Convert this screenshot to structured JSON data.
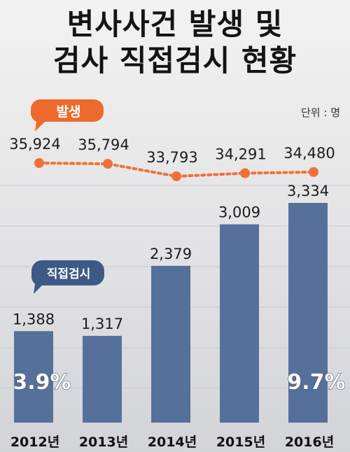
{
  "title_line1": "변사사건 발생 및",
  "title_line2": "검사 직접검시 현황",
  "unit": "단위 : 명",
  "legend": {
    "occurrence": "발생",
    "inspection": "직접검시"
  },
  "colors": {
    "bar": "#56709c",
    "line": "#f0703a",
    "legend_occurrence": "#ec6a2c",
    "legend_inspection": "#3d5a86"
  },
  "chart_data": {
    "type": "bar",
    "categories": [
      "2012년",
      "2013년",
      "2014년",
      "2015년",
      "2016년"
    ],
    "series": [
      {
        "name": "직접검시",
        "type": "bar",
        "values": [
          1388,
          1317,
          2379,
          3009,
          3334
        ],
        "labels": [
          "1,388",
          "1,317",
          "2,379",
          "3,009",
          "3,334"
        ]
      },
      {
        "name": "발생",
        "type": "line",
        "values": [
          35924,
          35794,
          33793,
          34291,
          34480
        ],
        "labels": [
          "35,924",
          "35,794",
          "33,793",
          "34,291",
          "34,480"
        ]
      }
    ],
    "annotations": [
      {
        "category": "2012년",
        "text": "3.9%"
      },
      {
        "category": "2016년",
        "text": "9.7%"
      }
    ]
  }
}
